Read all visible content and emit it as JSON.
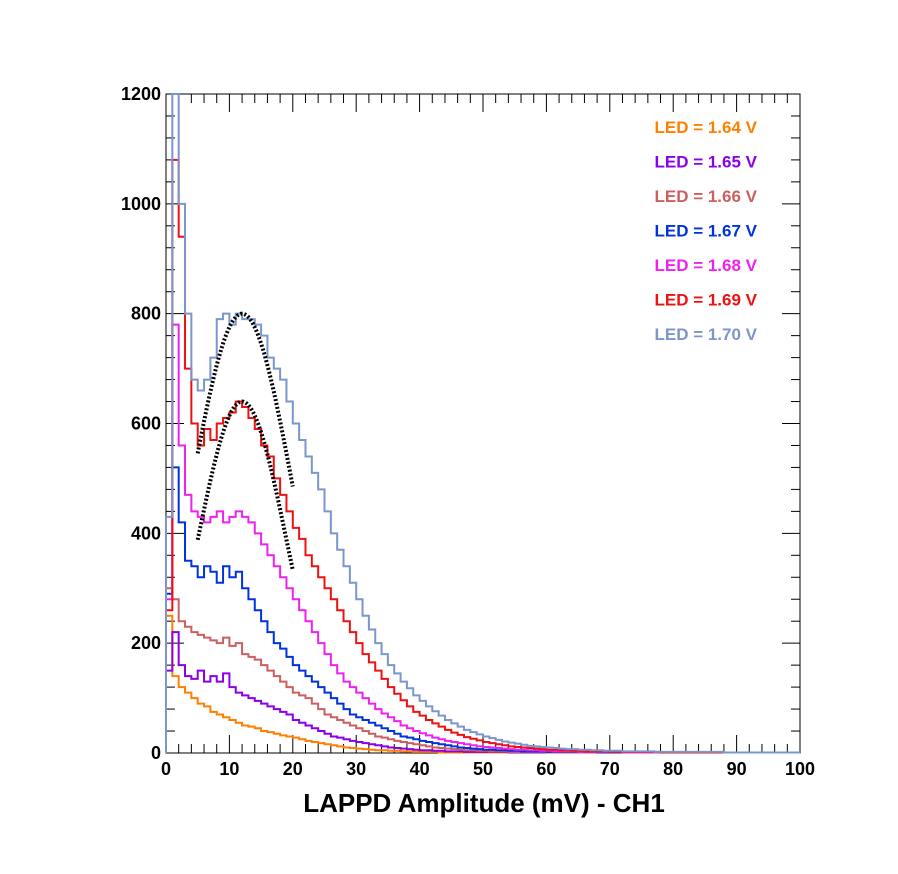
{
  "chart_data": {
    "type": "histogram",
    "title": "",
    "xlabel": "LAPPD Amplitude (mV) - CH1",
    "ylabel": "",
    "xlim": [
      0,
      100
    ],
    "ylim": [
      0,
      1200
    ],
    "x_ticks": [
      0,
      10,
      20,
      30,
      40,
      50,
      60,
      70,
      80,
      90,
      100
    ],
    "y_ticks": [
      0,
      200,
      400,
      600,
      800,
      1000,
      1200
    ],
    "bin_width": 1,
    "legend_position": "top-right",
    "series": [
      {
        "name": "LED = 1.64 V",
        "color": "#ff7f00",
        "values": [
          250,
          140,
          120,
          110,
          100,
          90,
          85,
          75,
          70,
          65,
          60,
          55,
          50,
          48,
          45,
          40,
          38,
          35,
          32,
          30,
          28,
          25,
          22,
          20,
          18,
          16,
          14,
          12,
          10,
          9,
          8,
          7,
          6,
          5,
          5,
          4,
          4,
          3,
          3,
          2,
          2,
          2,
          2,
          1,
          1,
          1,
          1,
          1,
          1,
          1,
          1,
          1,
          1,
          1,
          1,
          1,
          1,
          1,
          1,
          1,
          1,
          1,
          1,
          1,
          1,
          1,
          1,
          1,
          1,
          1,
          1,
          1,
          1,
          1,
          1,
          1,
          1,
          1,
          1,
          1,
          1,
          1,
          1,
          1,
          1,
          1,
          1,
          1,
          1,
          1,
          1,
          1,
          1,
          1,
          1,
          1,
          1,
          1,
          1,
          1
        ]
      },
      {
        "name": "LED = 1.65 V",
        "color": "#8b00e8",
        "values": [
          150,
          220,
          160,
          140,
          135,
          150,
          130,
          140,
          130,
          145,
          120,
          110,
          105,
          100,
          95,
          90,
          85,
          80,
          75,
          70,
          60,
          55,
          50,
          45,
          40,
          35,
          30,
          28,
          25,
          22,
          20,
          18,
          16,
          14,
          12,
          10,
          9,
          8,
          7,
          6,
          5,
          5,
          4,
          4,
          3,
          3,
          3,
          2,
          2,
          2,
          2,
          2,
          2,
          2,
          1,
          1,
          1,
          1,
          1,
          1,
          1,
          1,
          1,
          1,
          1,
          1,
          1,
          1,
          1,
          1,
          1,
          1,
          1,
          1,
          1,
          1,
          1,
          1,
          1,
          1,
          1,
          1,
          1,
          1,
          1,
          1,
          1,
          1,
          1,
          1,
          1,
          1,
          1,
          1,
          1,
          1,
          1,
          1,
          1,
          1
        ]
      },
      {
        "name": "LED = 1.66 V",
        "color": "#cc5f5f",
        "values": [
          300,
          280,
          240,
          230,
          220,
          215,
          210,
          205,
          200,
          210,
          195,
          200,
          180,
          175,
          170,
          160,
          150,
          140,
          130,
          120,
          110,
          105,
          100,
          90,
          80,
          70,
          65,
          60,
          55,
          50,
          45,
          40,
          35,
          30,
          28,
          25,
          22,
          20,
          18,
          16,
          14,
          12,
          10,
          9,
          8,
          7,
          6,
          5,
          5,
          4,
          4,
          3,
          3,
          3,
          2,
          2,
          2,
          2,
          2,
          2,
          1,
          1,
          1,
          1,
          1,
          1,
          1,
          1,
          1,
          1,
          1,
          1,
          1,
          1,
          1,
          1,
          1,
          1,
          1,
          1,
          1,
          1,
          1,
          1,
          1,
          1,
          1,
          1,
          1,
          1,
          1,
          1,
          1,
          1,
          1,
          1,
          1,
          1,
          1,
          1
        ]
      },
      {
        "name": "LED = 1.67 V",
        "color": "#0033dd",
        "values": [
          290,
          520,
          420,
          350,
          340,
          320,
          340,
          330,
          310,
          340,
          320,
          330,
          300,
          280,
          260,
          240,
          220,
          200,
          190,
          175,
          160,
          150,
          140,
          130,
          120,
          110,
          100,
          90,
          80,
          70,
          65,
          60,
          55,
          50,
          45,
          40,
          35,
          30,
          28,
          25,
          22,
          20,
          18,
          16,
          14,
          12,
          10,
          9,
          8,
          7,
          6,
          6,
          5,
          5,
          4,
          4,
          3,
          3,
          3,
          3,
          2,
          2,
          2,
          2,
          2,
          2,
          2,
          2,
          1,
          1,
          1,
          1,
          1,
          1,
          1,
          1,
          1,
          1,
          1,
          1,
          1,
          1,
          1,
          1,
          1,
          1,
          1,
          1,
          1,
          1,
          1,
          1,
          1,
          1,
          1,
          1,
          1,
          1,
          1,
          1
        ]
      },
      {
        "name": "LED = 1.68 V",
        "color": "#ee22ee",
        "values": [
          280,
          780,
          560,
          470,
          440,
          430,
          420,
          430,
          440,
          420,
          430,
          440,
          430,
          420,
          400,
          380,
          360,
          340,
          320,
          300,
          280,
          260,
          240,
          220,
          200,
          180,
          160,
          145,
          130,
          120,
          110,
          100,
          90,
          80,
          72,
          65,
          58,
          50,
          45,
          40,
          36,
          32,
          28,
          25,
          22,
          20,
          18,
          16,
          14,
          12,
          11,
          10,
          9,
          8,
          7,
          6,
          6,
          5,
          5,
          4,
          4,
          3,
          3,
          3,
          3,
          2,
          2,
          2,
          2,
          2,
          2,
          2,
          1,
          1,
          1,
          1,
          1,
          1,
          1,
          1,
          1,
          1,
          1,
          1,
          1,
          1,
          1,
          1,
          1,
          1,
          1,
          1,
          1,
          1,
          1,
          1,
          1,
          1,
          1,
          1
        ]
      },
      {
        "name": "LED = 1.69 V",
        "color": "#ee1111",
        "values": [
          260,
          1080,
          940,
          700,
          600,
          560,
          590,
          570,
          600,
          610,
          620,
          640,
          630,
          610,
          590,
          560,
          540,
          500,
          470,
          440,
          410,
          390,
          360,
          340,
          320,
          300,
          280,
          260,
          240,
          220,
          200,
          180,
          165,
          150,
          135,
          120,
          108,
          96,
          85,
          75,
          68,
          60,
          54,
          48,
          42,
          37,
          33,
          29,
          26,
          23,
          20,
          18,
          16,
          14,
          12,
          11,
          10,
          9,
          8,
          7,
          6,
          6,
          5,
          5,
          4,
          4,
          3,
          3,
          3,
          3,
          2,
          2,
          2,
          2,
          2,
          2,
          2,
          2,
          1,
          1,
          1,
          1,
          1,
          1,
          1,
          1,
          1,
          1,
          1,
          1,
          1,
          1,
          1,
          1,
          1,
          1,
          1,
          1,
          1,
          1
        ]
      },
      {
        "name": "LED = 1.70 V",
        "color": "#7a96cc",
        "values": [
          430,
          1200,
          1000,
          800,
          680,
          660,
          680,
          720,
          790,
          800,
          780,
          800,
          790,
          790,
          780,
          760,
          720,
          700,
          680,
          640,
          600,
          570,
          540,
          510,
          480,
          440,
          400,
          370,
          340,
          310,
          280,
          250,
          225,
          200,
          180,
          160,
          145,
          130,
          118,
          105,
          95,
          85,
          76,
          68,
          60,
          54,
          48,
          42,
          38,
          34,
          30,
          27,
          24,
          21,
          19,
          17,
          15,
          13,
          12,
          11,
          10,
          9,
          8,
          7,
          7,
          6,
          6,
          5,
          5,
          4,
          4,
          4,
          3,
          3,
          3,
          3,
          3,
          2,
          2,
          2,
          2,
          2,
          2,
          2,
          2,
          2,
          2,
          2,
          1,
          1,
          1,
          1,
          1,
          1,
          1,
          1,
          1,
          1,
          1,
          1
        ]
      }
    ],
    "fits": [
      {
        "name": "gaussian-fit-1.70",
        "color": "#000000",
        "x_range": [
          5,
          20
        ],
        "mean": 12,
        "sigma": 8,
        "amplitude": 800
      },
      {
        "name": "gaussian-fit-1.69",
        "color": "#000000",
        "x_range": [
          5,
          20
        ],
        "mean": 12,
        "sigma": 7,
        "amplitude": 640
      }
    ]
  }
}
